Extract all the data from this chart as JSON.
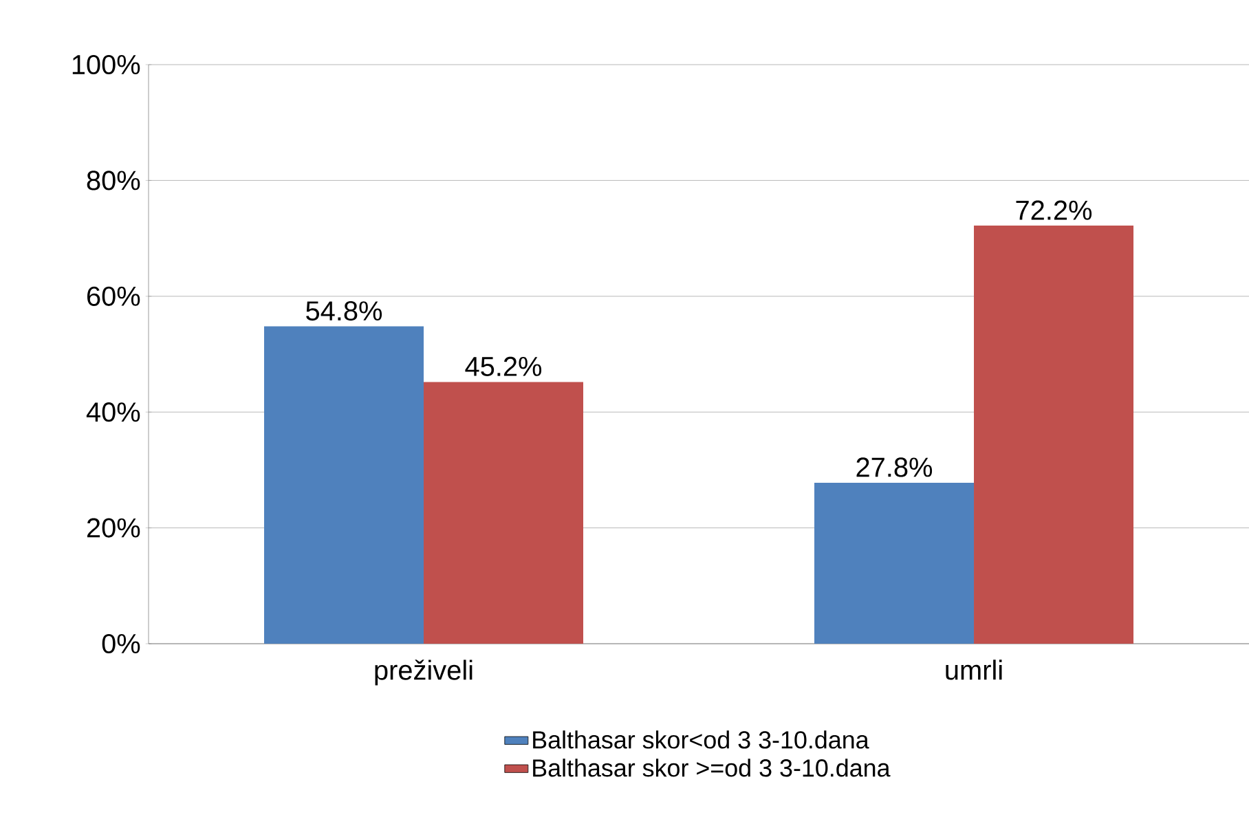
{
  "chart_data": {
    "type": "bar",
    "categories": [
      "preživeli",
      "umrli"
    ],
    "series": [
      {
        "name": "Balthasar skor<od 3 3-10.dana",
        "color": "#4f81bd",
        "values": [
          54.8,
          27.8
        ],
        "value_labels": [
          "54.8%",
          "27.8%"
        ]
      },
      {
        "name": "Balthasar skor >=od 3 3-10.dana",
        "color": "#c0504d",
        "values": [
          45.2,
          72.2
        ],
        "value_labels": [
          "45.2%",
          "72.2%"
        ]
      }
    ],
    "ylim": [
      0,
      100
    ],
    "yticks": [
      {
        "value": 0,
        "label": "0%"
      },
      {
        "value": 20,
        "label": "20%"
      },
      {
        "value": 40,
        "label": "40%"
      },
      {
        "value": 60,
        "label": "60%"
      },
      {
        "value": 80,
        "label": "80%"
      },
      {
        "value": 100,
        "label": "100%"
      }
    ],
    "grid": "y",
    "legend": "bottom"
  }
}
